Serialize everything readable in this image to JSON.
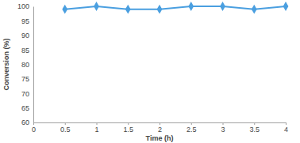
{
  "chart_data": {
    "type": "line",
    "x_label": "Time (h)",
    "y_label": "Conversion (%)",
    "x": [
      0.5,
      1,
      1.5,
      2,
      2.5,
      3,
      3.5,
      4
    ],
    "values": [
      99,
      100,
      99,
      99,
      100,
      100,
      99,
      100
    ],
    "color": "#4a9fe0",
    "marker": "diamond",
    "xlim": [
      0,
      4
    ],
    "xticks": [
      0,
      0.5,
      1,
      1.5,
      2,
      2.5,
      3,
      3.5,
      4
    ],
    "ylim": [
      60,
      100
    ],
    "yticks": [
      60,
      65,
      70,
      75,
      80,
      85,
      90,
      95,
      100
    ],
    "grid": false
  }
}
